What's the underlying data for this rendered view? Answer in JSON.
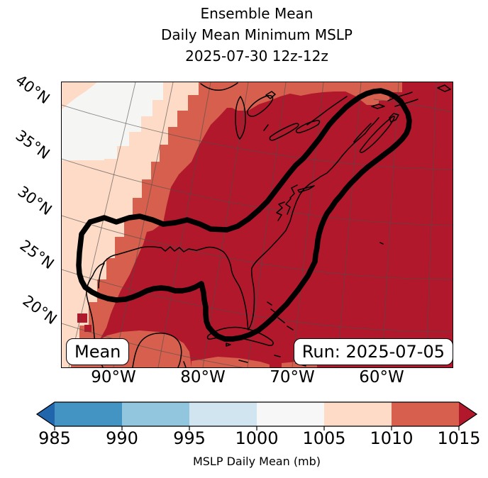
{
  "title": {
    "line1": "Ensemble Mean",
    "line2": "Daily Mean Minimum MSLP",
    "line3": "2025-07-30 12z-12z"
  },
  "map": {
    "mean_label": "Mean",
    "run_label": "Run: 2025-07-05"
  },
  "axes": {
    "lat": [
      "40°N",
      "35°N",
      "30°N",
      "25°N",
      "20°N"
    ],
    "lon": [
      "90°W",
      "80°W",
      "70°W",
      "60°W"
    ]
  },
  "colorbar": {
    "label": "MSLP Daily Mean (mb)",
    "ticks": [
      "985",
      "990",
      "995",
      "1000",
      "1005",
      "1010",
      "1015"
    ],
    "segments": [
      "#4393c3",
      "#92c5de",
      "#d1e5f0",
      "#f7f7f7",
      "#fddbc7",
      "#d6604d"
    ],
    "under_color": "#2166ac",
    "over_color": "#b2182b"
  },
  "colors": {
    "dark_red": "#b2182b",
    "medium_red": "#d6604d",
    "peach": "#fddbc7",
    "white_region": "#f5f5f4",
    "grid": "#4d4d4d",
    "coast": "#000000",
    "contour": "#000000",
    "background": "#ffffff"
  },
  "chart_data": {
    "type": "heatmap",
    "subtype": "filled-contour-geographic-map",
    "title": "Ensemble Mean",
    "subtitle": "Daily Mean Minimum MSLP",
    "valid_time": "2025-07-30 12z-12z",
    "run_time": "2025-07-05",
    "statistic": "Mean",
    "variable": "MSLP Daily Mean (mb)",
    "colorbar_levels": [
      985,
      990,
      995,
      1000,
      1005,
      1010,
      1015
    ],
    "colorbar_colors": [
      "#4393c3",
      "#92c5de",
      "#d1e5f0",
      "#f7f7f7",
      "#fddbc7",
      "#d6604d"
    ],
    "colorbar_under": "#2166ac",
    "colorbar_over": "#b2182b",
    "colorbar_extend": "both",
    "x_ticks": [
      "90°W",
      "80°W",
      "70°W",
      "60°W"
    ],
    "y_ticks": [
      "40°N",
      "35°N",
      "30°N",
      "25°N",
      "20°N"
    ],
    "grid_spacing_deg": 5,
    "field_regions": [
      {
        "value_mb": ">=1015",
        "color": "#b2182b",
        "area": "most of the domain: western Atlantic, Gulf of Mexico, eastern North America"
      },
      {
        "value_mb": "1010-1015",
        "color": "#d6604d",
        "area": "diagonal band across the north-west interior and a strip along the northern edge"
      },
      {
        "value_mb": "1005-1010",
        "color": "#fddbc7",
        "area": "narrow band in the far north-west and the south-west corner"
      },
      {
        "value_mb": "1000-1005",
        "color": "#f7f7f7",
        "area": "extreme north-west corner"
      }
    ],
    "highlight_contour": "thick black closed contour enclosing the Gulf of Mexico and extending north-east along the US East Coast to Nova Scotia",
    "legend_boxes": [
      "Mean",
      "Run: 2025-07-05"
    ]
  }
}
